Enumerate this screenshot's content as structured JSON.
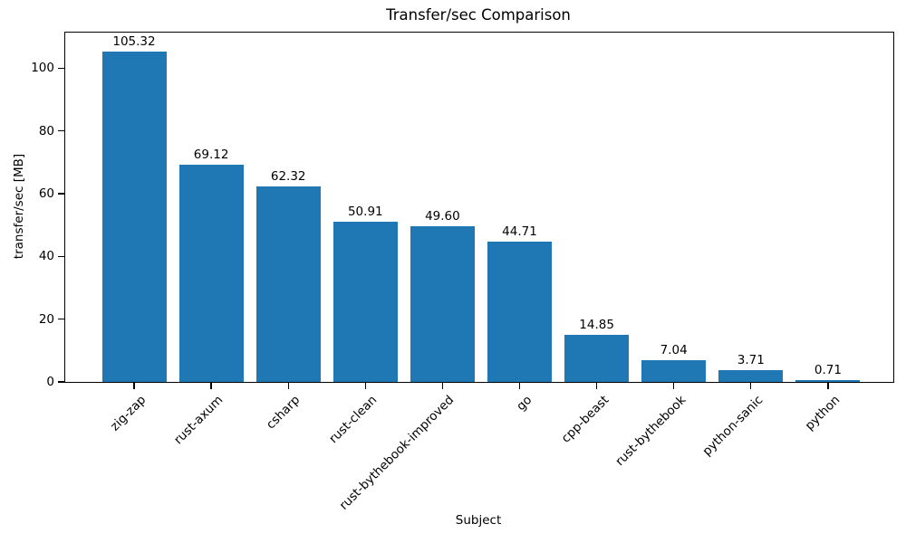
{
  "chart_data": {
    "type": "bar",
    "title": "Transfer/sec Comparison",
    "xlabel": "Subject",
    "ylabel": "transfer/sec [MB]",
    "categories": [
      "zig-zap",
      "rust-axum",
      "csharp",
      "rust-clean",
      "rust-bythebook-improved",
      "go",
      "cpp-beast",
      "rust-bythebook",
      "python-sanic",
      "python"
    ],
    "values": [
      105.32,
      69.12,
      62.32,
      50.91,
      49.6,
      44.71,
      14.85,
      7.04,
      3.71,
      0.71
    ],
    "value_labels": [
      "105.32",
      "69.12",
      "62.32",
      "50.91",
      "49.60",
      "44.71",
      "14.85",
      "7.04",
      "3.71",
      "0.71"
    ],
    "yticks": [
      0,
      20,
      40,
      60,
      80,
      100
    ],
    "ylim": [
      0,
      111.3
    ],
    "bar_color": "#1f77b4",
    "grid": false,
    "legend": "none",
    "x_tick_rotation_deg": 45
  }
}
